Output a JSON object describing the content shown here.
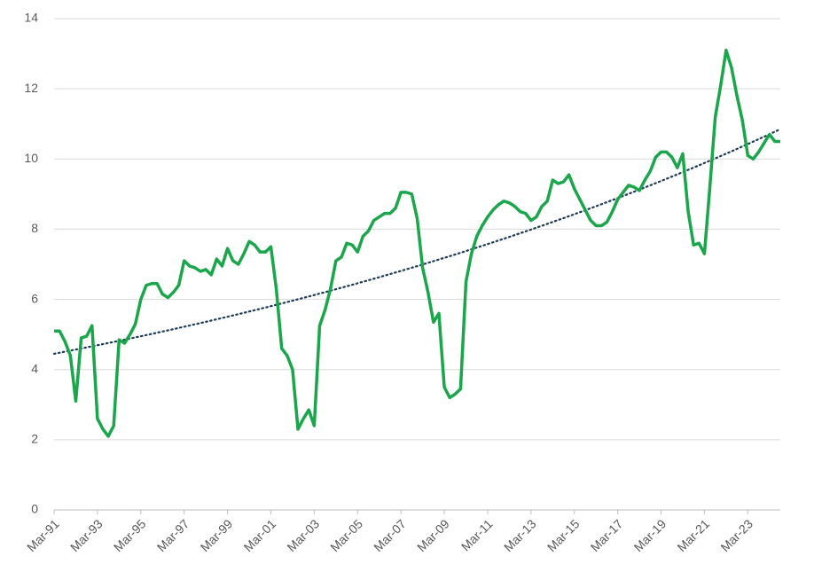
{
  "chart_data": {
    "type": "line",
    "categories": [
      "Mar-91",
      null,
      null,
      null,
      null,
      null,
      null,
      null,
      "Mar-93",
      null,
      null,
      null,
      null,
      null,
      null,
      null,
      "Mar-95",
      null,
      null,
      null,
      null,
      null,
      null,
      null,
      "Mar-97",
      null,
      null,
      null,
      null,
      null,
      null,
      null,
      "Mar-99",
      null,
      null,
      null,
      null,
      null,
      null,
      null,
      "Mar-01",
      null,
      null,
      null,
      null,
      null,
      null,
      null,
      "Mar-03",
      null,
      null,
      null,
      null,
      null,
      null,
      null,
      "Mar-05",
      null,
      null,
      null,
      null,
      null,
      null,
      null,
      "Mar-07",
      null,
      null,
      null,
      null,
      null,
      null,
      null,
      "Mar-09",
      null,
      null,
      null,
      null,
      null,
      null,
      null,
      "Mar-11",
      null,
      null,
      null,
      null,
      null,
      null,
      null,
      "Mar-13",
      null,
      null,
      null,
      null,
      null,
      null,
      null,
      "Mar-15",
      null,
      null,
      null,
      null,
      null,
      null,
      null,
      "Mar-17",
      null,
      null,
      null,
      null,
      null,
      null,
      null,
      "Mar-19",
      null,
      null,
      null,
      null,
      null,
      null,
      null,
      "Mar-21",
      null,
      null,
      null,
      null,
      null,
      null,
      null,
      "Mar-23",
      null,
      null,
      null,
      null,
      null,
      null
    ],
    "series": [
      {
        "color": "#1aa64a",
        "values": [
          5.1,
          5.1,
          4.8,
          4.4,
          3.1,
          4.9,
          4.95,
          5.25,
          2.6,
          2.3,
          2.1,
          2.4,
          4.85,
          4.75,
          5.0,
          5.3,
          6.0,
          6.4,
          6.45,
          6.45,
          6.15,
          6.05,
          6.2,
          6.4,
          7.1,
          6.95,
          6.9,
          6.8,
          6.85,
          6.7,
          7.15,
          6.95,
          7.45,
          7.1,
          7.0,
          7.3,
          7.65,
          7.55,
          7.35,
          7.35,
          7.5,
          6.3,
          4.6,
          4.4,
          4.0,
          2.3,
          2.6,
          2.85,
          2.4,
          5.25,
          5.7,
          6.3,
          7.1,
          7.2,
          7.6,
          7.55,
          7.35,
          7.8,
          7.95,
          8.25,
          8.35,
          8.45,
          8.45,
          8.6,
          9.05,
          9.05,
          9.0,
          8.3,
          6.9,
          6.2,
          5.35,
          5.6,
          3.5,
          3.2,
          3.3,
          3.45,
          6.5,
          7.3,
          7.8,
          8.1,
          8.35,
          8.55,
          8.7,
          8.8,
          8.75,
          8.65,
          8.5,
          8.45,
          8.25,
          8.35,
          8.65,
          8.8,
          9.4,
          9.3,
          9.35,
          9.55,
          9.15,
          8.85,
          8.55,
          8.25,
          8.1,
          8.1,
          8.2,
          8.5,
          8.85,
          9.05,
          9.25,
          9.2,
          9.1,
          9.4,
          9.65,
          10.05,
          10.2,
          10.2,
          10.05,
          9.75,
          10.15,
          8.5,
          7.55,
          7.6,
          7.3,
          9.2,
          11.2,
          12.1,
          13.1,
          12.6,
          11.8,
          11.1,
          10.1,
          10.0,
          10.2,
          10.45,
          10.7,
          10.5,
          10.5
        ]
      }
    ],
    "trendline": {
      "type": "exponential",
      "color": "#1d3c5a",
      "values": [
        4.45,
        10.85
      ]
    },
    "ylim": [
      0,
      14
    ],
    "yticks": [
      0,
      2,
      4,
      6,
      8,
      10,
      12,
      14
    ],
    "grid": true
  }
}
